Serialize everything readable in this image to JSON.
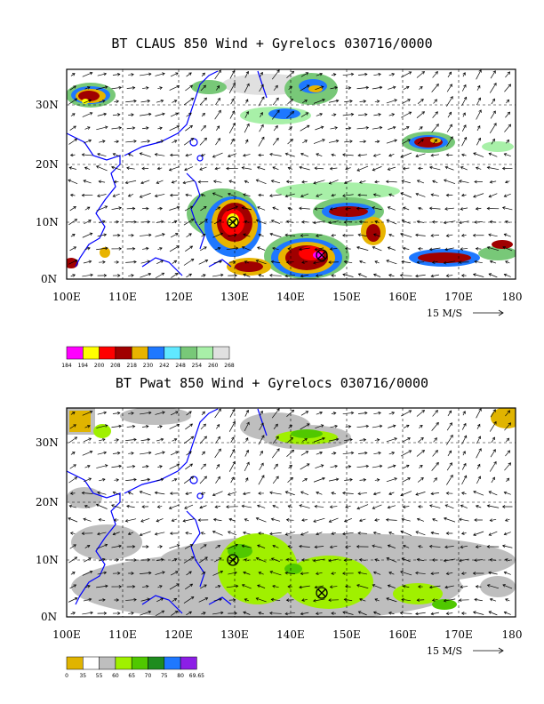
{
  "panels": [
    {
      "title": "BT CLAUS 850 Wind + Gyrelocs 030716/0000",
      "colorbar_labels": [
        "184",
        "194",
        "200",
        "208",
        "218",
        "230",
        "242",
        "248",
        "254",
        "260",
        "268"
      ],
      "colorbar_colors": [
        "#ff00ff",
        "#ffff00",
        "#ff0000",
        "#a00000",
        "#e8b400",
        "#1e78ff",
        "#60e8ff",
        "#78c878",
        "#a8f0a8",
        "#e0e0e0"
      ]
    },
    {
      "title": "BT Pwat 850 Wind + Gyrelocs 030716/0000",
      "colorbar_labels": [
        "0",
        "35",
        "55",
        "60",
        "65",
        "70",
        "75",
        "80",
        "69.65"
      ],
      "colorbar_colors": [
        "#e0b400",
        "#ffffff",
        "#bebebe",
        "#a0f000",
        "#50c800",
        "#1e8c1e",
        "#1e78ff",
        "#8c1ee6"
      ]
    }
  ],
  "lat_labels": [
    "30N",
    "20N",
    "10N",
    "0N"
  ],
  "lon_labels": [
    "100E",
    "110E",
    "120E",
    "130E",
    "140E",
    "150E",
    "160E",
    "170E",
    "180"
  ],
  "ref_vector_label": "15 M/S",
  "gyre_locations": [
    {
      "lon": 129.5,
      "lat": 10.0
    },
    {
      "lon": 145.0,
      "lat": 4.0
    }
  ]
}
